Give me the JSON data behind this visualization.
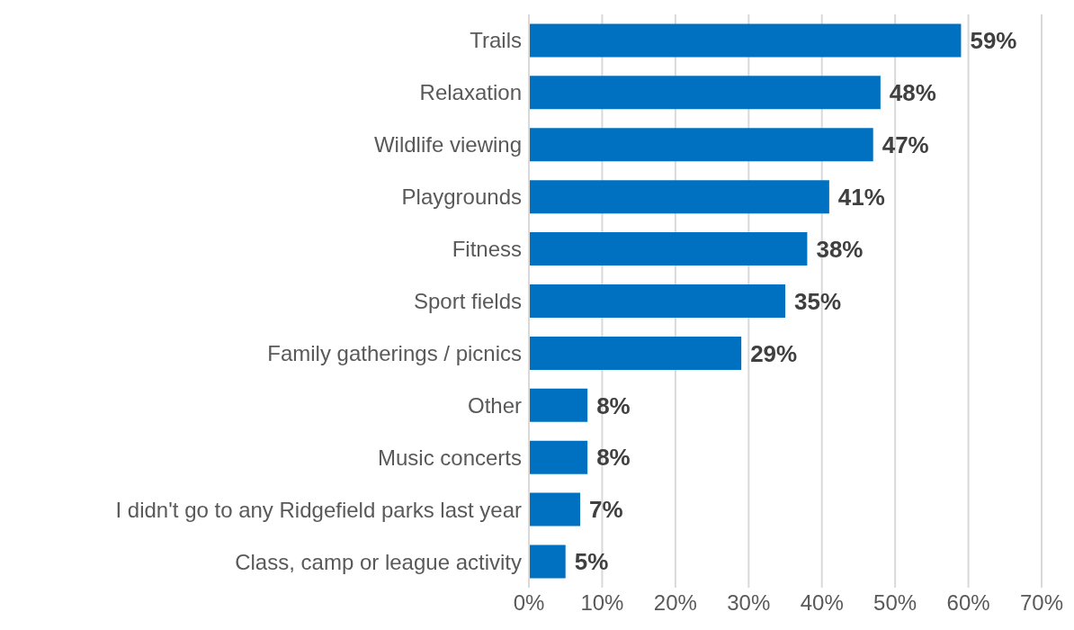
{
  "chart_data": {
    "type": "bar",
    "orientation": "horizontal",
    "categories": [
      "Trails",
      "Relaxation",
      "Wildlife viewing",
      "Playgrounds",
      "Fitness",
      "Sport fields",
      "Family gatherings / picnics",
      "Other",
      "Music concerts",
      "I didn't go to any Ridgefield parks last year",
      "Class, camp or league activity"
    ],
    "values": [
      59,
      48,
      47,
      41,
      38,
      35,
      29,
      8,
      8,
      7,
      5
    ],
    "value_labels": [
      "59%",
      "48%",
      "47%",
      "41%",
      "38%",
      "35%",
      "29%",
      "8%",
      "8%",
      "7%",
      "5%"
    ],
    "color": "#0070c0",
    "xlim": [
      0,
      70
    ],
    "xticks": [
      {
        "value": 0,
        "label": "0%"
      },
      {
        "value": 10,
        "label": "10%"
      },
      {
        "value": 20,
        "label": "20%"
      },
      {
        "value": 30,
        "label": "30%"
      },
      {
        "value": 40,
        "label": "40%"
      },
      {
        "value": 50,
        "label": "50%"
      },
      {
        "value": 60,
        "label": "60%"
      },
      {
        "value": 70,
        "label": "70%"
      }
    ],
    "grid": "x"
  }
}
